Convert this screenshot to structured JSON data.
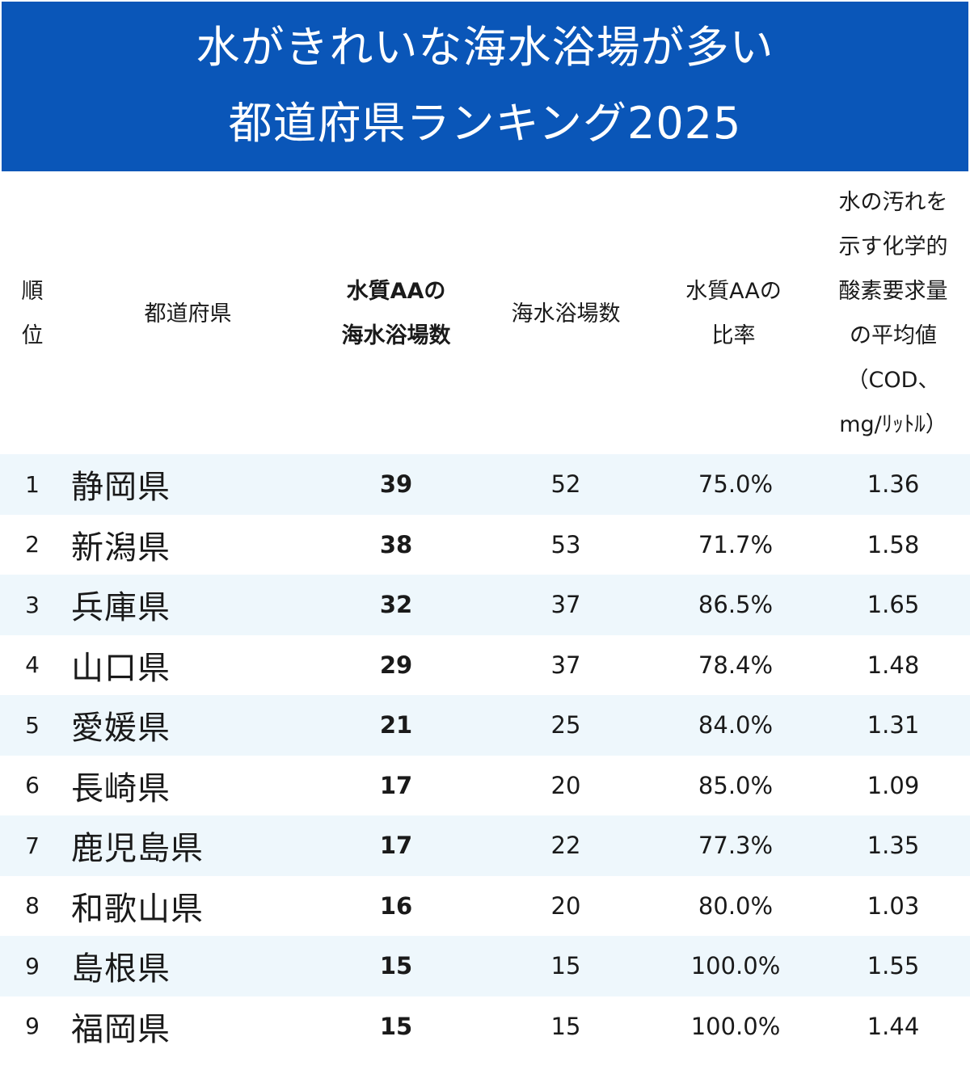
{
  "title": {
    "line1": "水がきれいな海水浴場が多い",
    "line2": "都道府県ランキング2025"
  },
  "headers": {
    "rank": "順\n位",
    "prefecture": "都道府県",
    "aa_count": "水質AAの\n海水浴場数",
    "total": "海水浴場数",
    "ratio": "水質AAの\n比率",
    "cod": "水の汚れを\n示す化学的\n酸素要求量\nの平均値\n（COD、\nmg/ﾘｯﾄﾙ）"
  },
  "rows": [
    {
      "rank": "1",
      "prefecture": "静岡県",
      "aa": "39",
      "total": "52",
      "ratio": "75.0%",
      "cod": "1.36"
    },
    {
      "rank": "2",
      "prefecture": "新潟県",
      "aa": "38",
      "total": "53",
      "ratio": "71.7%",
      "cod": "1.58"
    },
    {
      "rank": "3",
      "prefecture": "兵庫県",
      "aa": "32",
      "total": "37",
      "ratio": "86.5%",
      "cod": "1.65"
    },
    {
      "rank": "4",
      "prefecture": "山口県",
      "aa": "29",
      "total": "37",
      "ratio": "78.4%",
      "cod": "1.48"
    },
    {
      "rank": "5",
      "prefecture": "愛媛県",
      "aa": "21",
      "total": "25",
      "ratio": "84.0%",
      "cod": "1.31"
    },
    {
      "rank": "6",
      "prefecture": "長崎県",
      "aa": "17",
      "total": "20",
      "ratio": "85.0%",
      "cod": "1.09"
    },
    {
      "rank": "7",
      "prefecture": "鹿児島県",
      "aa": "17",
      "total": "22",
      "ratio": "77.3%",
      "cod": "1.35"
    },
    {
      "rank": "8",
      "prefecture": "和歌山県",
      "aa": "16",
      "total": "20",
      "ratio": "80.0%",
      "cod": "1.03"
    },
    {
      "rank": "9",
      "prefecture": "島根県",
      "aa": "15",
      "total": "15",
      "ratio": "100.0%",
      "cod": "1.55"
    },
    {
      "rank": "9",
      "prefecture": "福岡県",
      "aa": "15",
      "total": "15",
      "ratio": "100.0%",
      "cod": "1.44"
    }
  ],
  "colors": {
    "banner": "#0a56b8",
    "row_alt": "#eef7fc"
  }
}
